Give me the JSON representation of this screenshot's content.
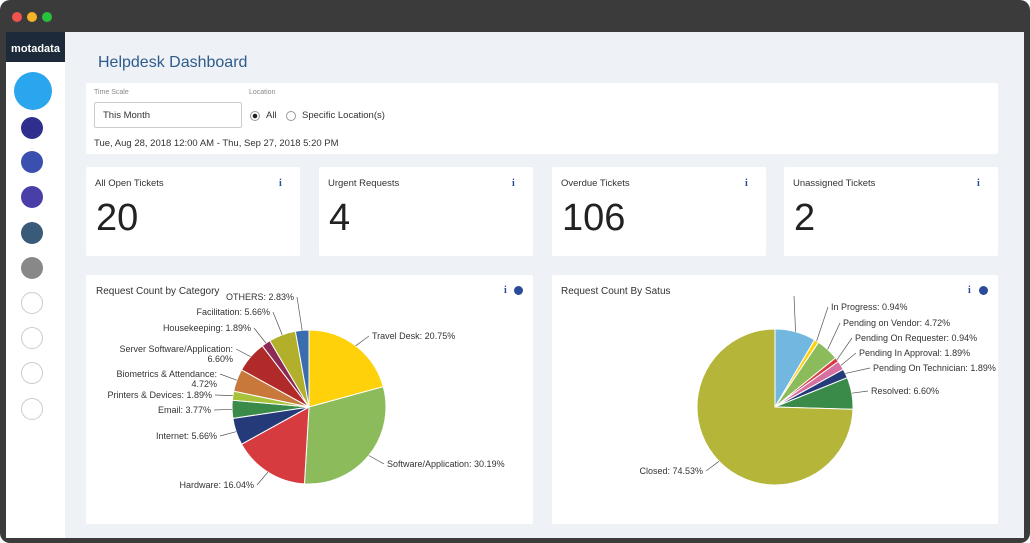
{
  "logo": "motadata",
  "header": {
    "title": "Helpdesk Dashboard"
  },
  "filters": {
    "time_scale_label": "Time Scale",
    "time_scale_value": "This Month",
    "location_label": "Location",
    "options": [
      "All",
      "Specific Location(s)"
    ],
    "date_range": "Tue, Aug 28, 2018 12:00 AM - Thu, Sep 27, 2018 5:20 PM"
  },
  "kpis": [
    {
      "label": "All Open Tickets",
      "value": "20"
    },
    {
      "label": "Urgent Requests",
      "value": "4"
    },
    {
      "label": "Overdue Tickets",
      "value": "106"
    },
    {
      "label": "Unassigned Tickets",
      "value": "2"
    }
  ],
  "chart_data": [
    {
      "type": "pie",
      "title": "Request Count by Category",
      "labels": [
        "Travel Desk: 20.75%",
        "Software/Application: 30.19%",
        "Hardware: 16.04%",
        "Internet: 5.66%",
        "Email: 3.77%",
        "Printers & Devices: 1.89%",
        "Biometrics & Attendance: 4.72%",
        "Server Software/Application: 6.60%",
        "Housekeeping: 1.89%",
        "Facilitation: 5.66%",
        "OTHERS: 2.83%"
      ],
      "values": [
        20.75,
        30.19,
        16.04,
        5.66,
        3.77,
        1.89,
        4.72,
        6.6,
        1.89,
        5.66,
        2.83
      ],
      "colors": [
        "#ffd10a",
        "#8cbb5b",
        "#d63c3f",
        "#253a78",
        "#3a8b4a",
        "#a8c23a",
        "#c8783a",
        "#b02a2a",
        "#8c2a55",
        "#b2af2a",
        "#3a6db0"
      ]
    },
    {
      "type": "pie",
      "title": "Request Count By Satus",
      "labels": [
        null,
        "In Progress: 0.94%",
        "Pending on Vendor: 4.72%",
        "Pending On Requester: 0.94%",
        "Pending In Approval: 1.89%",
        "Pending On Technician: 1.89%",
        "Resolved: 6.60%",
        "Closed: 74.53%"
      ],
      "values": [
        8.49,
        0.94,
        4.72,
        0.94,
        1.89,
        1.89,
        6.6,
        74.53
      ],
      "colors": [
        "#72b7e0",
        "#ffd10a",
        "#8cbb5b",
        "#d63c3f",
        "#d670a0",
        "#253a78",
        "#3a8b4a",
        "#b5b53a"
      ]
    }
  ]
}
